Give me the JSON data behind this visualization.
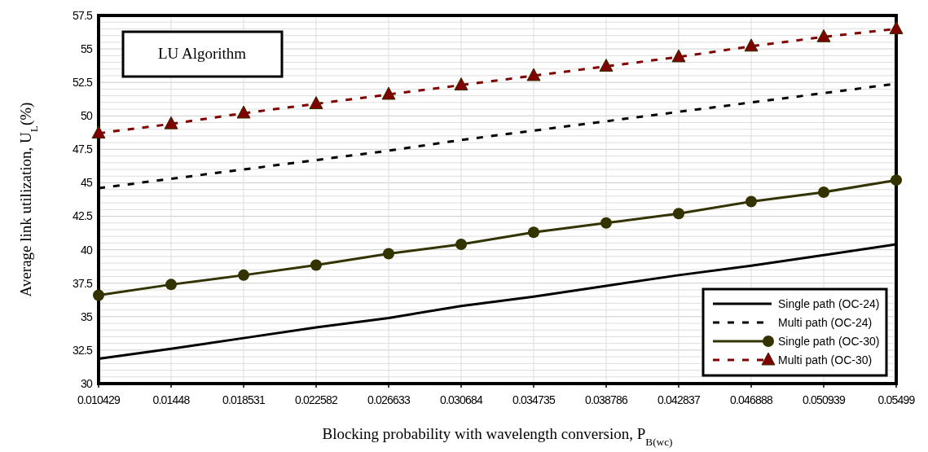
{
  "chart_data": {
    "type": "line",
    "xlabel": "Blocking probability with wavelength conversion, P$_{B(wc)}$",
    "ylabel": "Average link utilization, U$_{L}$(%)",
    "categories": [
      "0.010429",
      "0.01448",
      "0.018531",
      "0.022582",
      "0.026633",
      "0.030684",
      "0.034735",
      "0.038786",
      "0.042837",
      "0.046888",
      "0.050939",
      "0.05499"
    ],
    "series": [
      {
        "name": "Single path (OC-24)",
        "color": "#000000",
        "line_style": "solid",
        "marker": "none",
        "values": [
          31.85,
          32.6,
          33.4,
          34.2,
          34.9,
          35.8,
          36.5,
          37.3,
          38.1,
          38.8,
          39.6,
          40.4
        ]
      },
      {
        "name": "Multi path (OC-24)",
        "color": "#000000",
        "line_style": "dashed",
        "marker": "none",
        "values": [
          44.6,
          45.3,
          46.0,
          46.7,
          47.4,
          48.2,
          48.9,
          49.6,
          50.3,
          51.0,
          51.7,
          52.4
        ]
      },
      {
        "name": "Single path (OC-30)",
        "color": "#333300",
        "line_style": "solid",
        "marker": "circle",
        "values": [
          36.6,
          37.4,
          38.1,
          38.85,
          39.7,
          40.4,
          41.3,
          42.0,
          42.7,
          43.6,
          44.3,
          45.2
        ]
      },
      {
        "name": "Multi path (OC-30)",
        "color": "#800000",
        "line_style": "dashed",
        "marker": "triangle",
        "values": [
          48.7,
          49.4,
          50.2,
          50.9,
          51.6,
          52.3,
          53.0,
          53.7,
          54.4,
          55.2,
          55.9,
          56.5
        ]
      }
    ],
    "ylim": [
      30,
      57.5
    ],
    "yticks": [
      30,
      32.5,
      35,
      37.5,
      40,
      42.5,
      45,
      47.5,
      50,
      52.5,
      55,
      57.5
    ],
    "grid": true,
    "legend": "bottom right",
    "annotations": [
      "LU Algorithm"
    ]
  }
}
